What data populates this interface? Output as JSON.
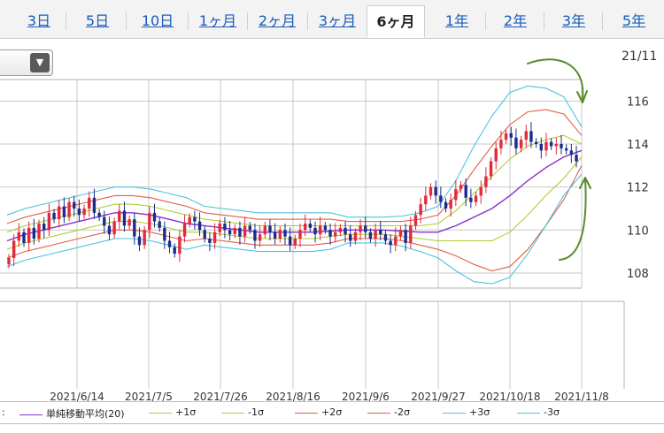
{
  "tabs": [
    {
      "label": "3日",
      "active": false
    },
    {
      "label": "5日",
      "active": false
    },
    {
      "label": "10日",
      "active": false
    },
    {
      "label": "1ヶ月",
      "active": false
    },
    {
      "label": "2ヶ月",
      "active": false
    },
    {
      "label": "3ヶ月",
      "active": false
    },
    {
      "label": "6ヶ月",
      "active": true
    },
    {
      "label": "1年",
      "active": false
    },
    {
      "label": "2年",
      "active": false
    },
    {
      "label": "3年",
      "active": false
    },
    {
      "label": "5年",
      "active": false
    }
  ],
  "date_label": "21/11",
  "legend_prefix": ":",
  "colors": {
    "candle_up": "#e02b3c",
    "candle_down": "#1a2d8c",
    "sma": "#8a2fc9",
    "sigma1": "#b3cc33",
    "sigma2": "#e06045",
    "sigma3": "#4cc3dc",
    "annotation": "#5a8a2a",
    "grid": "#c8c8c8"
  },
  "chart_data": {
    "type": "candlestick",
    "x_ticks": [
      "2021/6/14",
      "2021/7/5",
      "2021/7/26",
      "2021/8/16",
      "2021/9/6",
      "2021/9/27",
      "2021/10/18",
      "2021/11/8"
    ],
    "y_ticks": [
      108,
      110,
      112,
      114,
      116
    ],
    "ylim": [
      107.3,
      117.0
    ],
    "legend": [
      {
        "label": "単純移動平均(20)",
        "color": "#8a2fc9"
      },
      {
        "label": "+1σ",
        "color": "#b3cc33"
      },
      {
        "label": "-1σ",
        "color": "#b3cc33"
      },
      {
        "label": "+2σ",
        "color": "#e06045"
      },
      {
        "label": "-2σ",
        "color": "#e06045"
      },
      {
        "label": "+3σ",
        "color": "#4cc3dc"
      },
      {
        "label": "-3σ",
        "color": "#4cc3dc"
      }
    ],
    "series": [
      {
        "name": "単純移動平均(20)",
        "key": "sma",
        "values": [
          109.5,
          109.8,
          110.0,
          110.2,
          110.4,
          110.6,
          110.8,
          110.8,
          110.7,
          110.5,
          110.3,
          110.2,
          110.1,
          110.0,
          109.9,
          109.9,
          109.9,
          109.9,
          109.95,
          110.0,
          110.0,
          110.0,
          109.95,
          109.9,
          109.9,
          110.2,
          110.6,
          111.0,
          111.6,
          112.3,
          112.9,
          113.4,
          113.7
        ]
      },
      {
        "name": "+1σ",
        "key": "p1",
        "values": [
          109.9,
          110.2,
          110.4,
          110.6,
          110.8,
          111.0,
          111.2,
          111.2,
          111.1,
          110.9,
          110.7,
          110.5,
          110.4,
          110.3,
          110.2,
          110.2,
          110.2,
          110.2,
          110.2,
          110.2,
          110.2,
          110.2,
          110.2,
          110.2,
          110.3,
          110.9,
          111.7,
          112.5,
          113.3,
          113.9,
          114.2,
          114.4,
          114.0
        ]
      },
      {
        "name": "-1σ",
        "key": "m1",
        "values": [
          109.1,
          109.4,
          109.6,
          109.8,
          110.0,
          110.2,
          110.4,
          110.4,
          110.3,
          110.1,
          109.9,
          109.9,
          109.8,
          109.7,
          109.6,
          109.6,
          109.6,
          109.6,
          109.7,
          109.8,
          109.8,
          109.8,
          109.7,
          109.6,
          109.5,
          109.5,
          109.5,
          109.5,
          109.9,
          110.7,
          111.6,
          112.4,
          113.4
        ]
      },
      {
        "name": "+2σ",
        "key": "p2",
        "values": [
          110.3,
          110.6,
          110.8,
          111.0,
          111.2,
          111.4,
          111.6,
          111.6,
          111.5,
          111.3,
          111.1,
          110.8,
          110.7,
          110.6,
          110.5,
          110.5,
          110.5,
          110.5,
          110.5,
          110.4,
          110.4,
          110.4,
          110.4,
          110.5,
          110.7,
          111.6,
          112.8,
          113.9,
          114.9,
          115.5,
          115.6,
          115.4,
          114.4
        ]
      },
      {
        "name": "-2σ",
        "key": "m2",
        "values": [
          108.7,
          109.0,
          109.2,
          109.4,
          109.6,
          109.8,
          110.0,
          110.0,
          109.9,
          109.7,
          109.5,
          109.6,
          109.5,
          109.4,
          109.3,
          109.3,
          109.3,
          109.3,
          109.4,
          109.6,
          109.6,
          109.6,
          109.5,
          109.3,
          109.1,
          108.8,
          108.4,
          108.1,
          108.3,
          109.1,
          110.2,
          111.4,
          113.0
        ]
      },
      {
        "name": "+3σ",
        "key": "p3",
        "values": [
          110.7,
          111.0,
          111.2,
          111.4,
          111.6,
          111.8,
          112.0,
          112.0,
          111.9,
          111.7,
          111.5,
          111.1,
          111.0,
          110.9,
          110.8,
          110.8,
          110.8,
          110.8,
          110.8,
          110.6,
          110.6,
          110.6,
          110.65,
          110.8,
          111.1,
          112.3,
          113.9,
          115.3,
          116.4,
          116.7,
          116.6,
          116.2,
          114.8
        ]
      },
      {
        "name": "-3σ",
        "key": "m3",
        "values": [
          108.3,
          108.6,
          108.8,
          109.0,
          109.2,
          109.4,
          109.6,
          109.6,
          109.5,
          109.3,
          109.1,
          109.3,
          109.2,
          109.1,
          109.0,
          109.0,
          109.0,
          109.0,
          109.1,
          109.4,
          109.4,
          109.4,
          109.25,
          109.0,
          108.7,
          108.1,
          107.6,
          107.5,
          107.8,
          108.9,
          110.2,
          111.6,
          112.6
        ]
      }
    ],
    "closes": [
      108.7,
      109.5,
      109.9,
      109.4,
      110.1,
      109.6,
      110.3,
      110.0,
      110.8,
      110.5,
      111.1,
      110.6,
      111.3,
      111.0,
      110.7,
      111.0,
      111.5,
      110.8,
      110.6,
      110.2,
      109.8,
      110.4,
      110.9,
      110.2,
      110.5,
      109.7,
      109.3,
      110.0,
      110.8,
      110.4,
      110.1,
      109.5,
      109.2,
      108.9,
      109.7,
      110.3,
      110.6,
      110.4,
      110.0,
      109.6,
      109.4,
      109.9,
      110.3,
      110.0,
      109.8,
      110.1,
      109.7,
      110.2,
      110.0,
      109.5,
      109.8,
      110.2,
      109.9,
      109.6,
      110.0,
      109.7,
      109.3,
      109.6,
      110.0,
      110.3,
      110.1,
      109.8,
      110.2,
      110.0,
      109.7,
      109.9,
      110.1,
      109.8,
      109.5,
      109.9,
      110.2,
      109.9,
      109.6,
      110.0,
      109.8,
      109.5,
      109.3,
      109.7,
      110.0,
      109.4,
      110.2,
      110.7,
      111.2,
      111.6,
      112.0,
      111.6,
      111.3,
      111.0,
      111.4,
      111.9,
      112.1,
      111.5,
      111.3,
      111.6,
      112.0,
      112.5,
      113.2,
      113.8,
      114.2,
      114.5,
      114.3,
      113.8,
      114.2,
      114.6,
      114.1,
      114.0,
      113.7,
      114.1,
      113.9,
      114.0,
      113.8,
      113.7,
      113.5,
      113.2
    ]
  },
  "annotations": [
    {
      "type": "arrow",
      "direction": "down"
    },
    {
      "type": "arrow",
      "direction": "up"
    }
  ]
}
